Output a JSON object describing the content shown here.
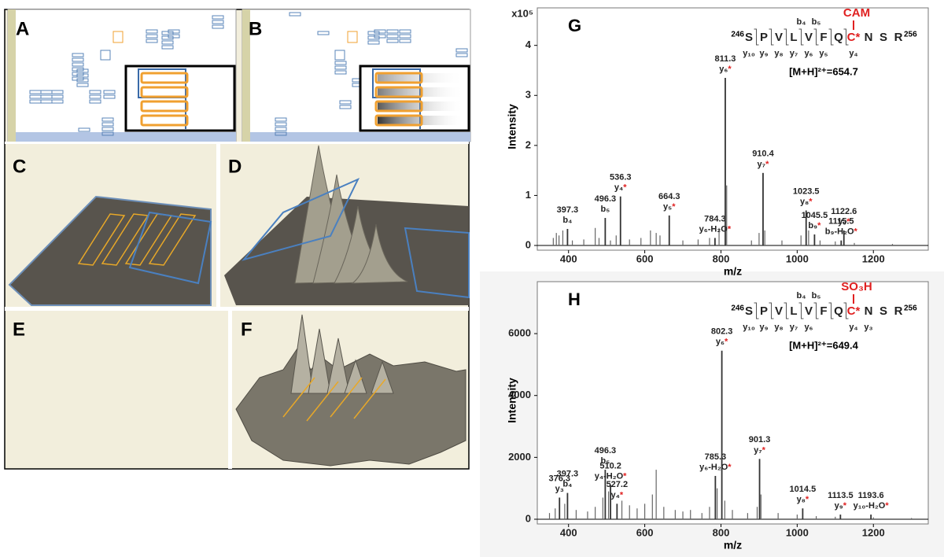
{
  "panels": [
    "A",
    "B",
    "C",
    "D",
    "E",
    "F"
  ],
  "chart_data": [
    {
      "type": "stem",
      "title": "G",
      "x_label": "m/z",
      "y_label": "Intensity",
      "y_multiplier": "x10⁵",
      "xlim": [
        318,
        1344
      ],
      "xticks": [
        400,
        600,
        800,
        1000,
        1200
      ],
      "ylim": [
        0,
        4.75
      ],
      "yticks": [
        0,
        1,
        2,
        3,
        4
      ],
      "color": "#333333",
      "x": [
        397.3,
        496.3,
        536.3,
        664.3,
        784.3,
        811.3,
        910.4,
        1023.5,
        1045.5,
        1115.5,
        1122.6
      ],
      "values": [
        0.33,
        0.55,
        0.98,
        0.6,
        0.15,
        3.35,
        1.45,
        0.7,
        0.22,
        0.1,
        0.3
      ],
      "ion_labels": [
        "b₄",
        "b₅",
        "y₄*",
        "y₅*",
        "y₆-H₂O*",
        "y₆*",
        "y₇*",
        "y₈*",
        "b₉*",
        "b₉-H₂O*",
        "y₉*"
      ],
      "other_x": [
        360,
        368,
        375,
        385,
        410,
        440,
        470,
        480,
        510,
        525,
        560,
        590,
        615,
        630,
        640,
        700,
        740,
        770,
        795,
        815,
        880,
        900,
        915,
        960,
        1010,
        1030,
        1060,
        1100,
        1150,
        1250
      ],
      "other_values": [
        0.15,
        0.25,
        0.2,
        0.3,
        0.1,
        0.12,
        0.35,
        0.15,
        0.1,
        0.2,
        0.12,
        0.15,
        0.3,
        0.25,
        0.2,
        0.1,
        0.12,
        0.15,
        0.35,
        1.2,
        0.1,
        0.25,
        0.3,
        0.1,
        0.2,
        0.3,
        0.1,
        0.08,
        0.05,
        0.03
      ],
      "sequence_start": "246",
      "residues": [
        "S",
        "P",
        "V",
        "L",
        "V",
        "F",
        "Q",
        "C*",
        "N",
        "S",
        "R"
      ],
      "sequence_end": "256",
      "modification": "CAM",
      "b_ions": [
        "b₄",
        "b₅"
      ],
      "y_ions": [
        "y₁₀",
        "y₉",
        "y₈",
        "y₇",
        "y₆",
        "y₅",
        "y₄"
      ],
      "precursor": "[M+H]²⁺=654.7"
    },
    {
      "type": "stem",
      "title": "H",
      "x_label": "m/z",
      "y_label": "Intensity",
      "xlim": [
        318,
        1344
      ],
      "xticks": [
        400,
        600,
        800,
        1000,
        1200
      ],
      "ylim": [
        0,
        7680
      ],
      "yticks": [
        0,
        2000,
        4000,
        6000
      ],
      "color": "#333333",
      "x": [
        376.3,
        397.3,
        496.3,
        510.2,
        527.2,
        785.3,
        802.3,
        901.3,
        1014.5,
        1113.5,
        1193.6
      ],
      "values": [
        700,
        850,
        1600,
        1100,
        500,
        1400,
        5450,
        1950,
        350,
        150,
        150
      ],
      "ion_labels": [
        "y₃",
        "b₄",
        "b₅",
        "y₄-H₂O*",
        "y₄*",
        "y₆-H₂O*",
        "y₆*",
        "y₇*",
        "y₈*",
        "y₉*",
        "y₁₀-H₂O*"
      ],
      "other_x": [
        350,
        365,
        390,
        420,
        450,
        470,
        490,
        505,
        540,
        560,
        580,
        600,
        620,
        630,
        650,
        680,
        700,
        720,
        750,
        770,
        790,
        810,
        830,
        870,
        895,
        905,
        950,
        1000,
        1050,
        1100,
        1200,
        1300
      ],
      "other_values": [
        200,
        350,
        500,
        300,
        250,
        400,
        700,
        900,
        600,
        450,
        350,
        500,
        800,
        1600,
        400,
        300,
        250,
        300,
        200,
        400,
        1000,
        600,
        300,
        200,
        400,
        800,
        200,
        150,
        100,
        80,
        60,
        40
      ],
      "sequence_start": "246",
      "residues": [
        "S",
        "P",
        "V",
        "L",
        "V",
        "F",
        "Q",
        "C*",
        "N",
        "S",
        "R"
      ],
      "sequence_end": "256",
      "modification": "SO₃H",
      "b_ions": [
        "b₄",
        "b₅"
      ],
      "y_ions": [
        "y₁₀",
        "y₉",
        "y₈",
        "y₇",
        "y₆",
        "y₄",
        "y₃"
      ],
      "precursor": "[M+H]²⁺=649.4"
    }
  ]
}
